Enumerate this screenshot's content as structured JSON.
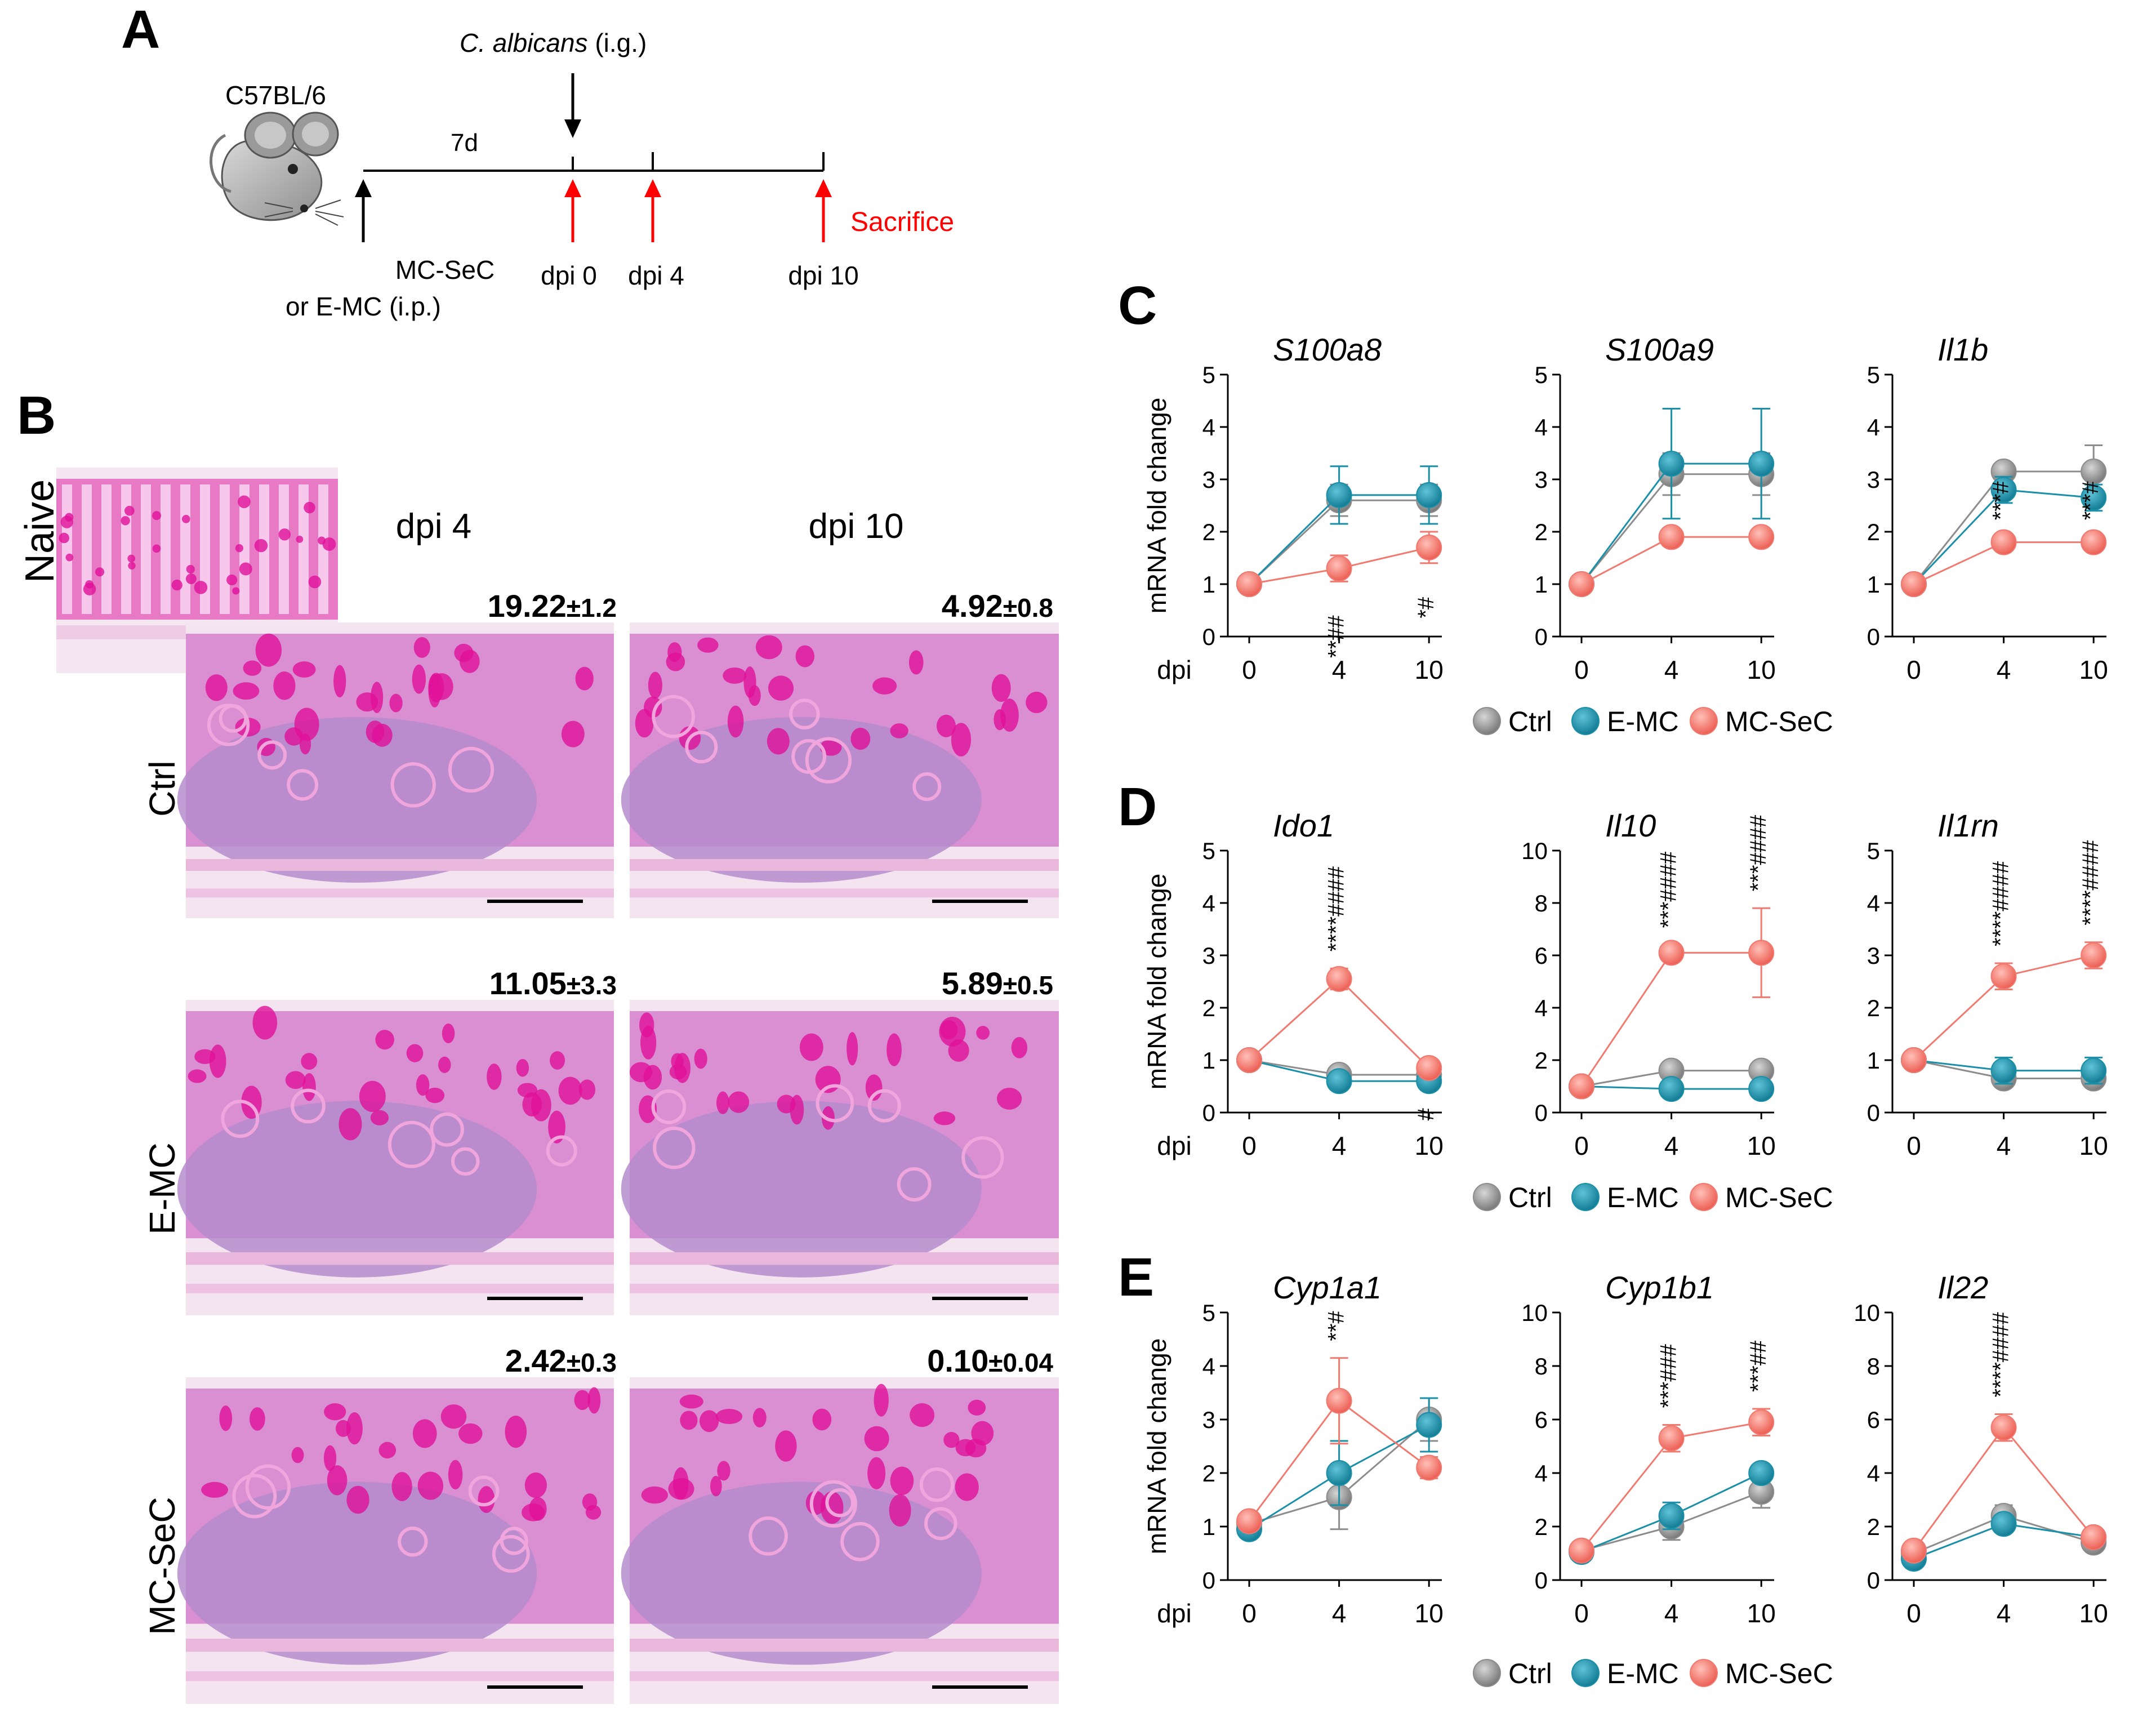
{
  "panel_a": {
    "letter": "A",
    "strain": "C57BL/6",
    "infection_species": "C. albicans",
    "infection_route": "(i.g.)",
    "interval": "7d",
    "treatment": "MC-SeC",
    "treatment_alt": "or E-MC (i.p.)",
    "timepoints": [
      "dpi 0",
      "dpi 4",
      "dpi 10"
    ],
    "end_label": "Sacrifice",
    "colors": {
      "end": "#ff0000",
      "start": "#000000"
    }
  },
  "panel_b": {
    "letter": "B",
    "inset_label": "Naive",
    "columns": [
      "dpi 4",
      "dpi 10"
    ],
    "rows": [
      {
        "group": "Ctrl",
        "scores": [
          {
            "value": "19.22",
            "sd": "±1.2"
          },
          {
            "value": "4.92",
            "sd": "±0.8"
          }
        ]
      },
      {
        "group": "E-MC",
        "scores": [
          {
            "value": "11.05",
            "sd": "±3.3"
          },
          {
            "value": "5.89",
            "sd": "±0.5"
          }
        ]
      },
      {
        "group": "MC-SeC",
        "scores": [
          {
            "value": "2.42",
            "sd": "±0.3"
          },
          {
            "value": "0.10",
            "sd": "±0.04"
          }
        ]
      }
    ],
    "colors": {
      "stain": "#e879c4",
      "tissue": "#d98fd2",
      "lymph": "#b58ccc",
      "goblet": "#e0109a"
    }
  },
  "series_legend": [
    {
      "name": "Ctrl",
      "color": "#8c8c8c"
    },
    {
      "name": "E-MC",
      "color": "#1b8fa8"
    },
    {
      "name": "MC-SeC",
      "color": "#f07a70"
    }
  ],
  "chart_data": [
    {
      "panel": "C",
      "type": "line",
      "title": "S100a8",
      "ylabel": "mRNA fold change",
      "xlabel": "dpi",
      "x": [
        0,
        4,
        10
      ],
      "ylim": [
        0,
        5
      ],
      "series": [
        {
          "name": "Ctrl",
          "values": [
            1,
            2.6,
            2.6
          ],
          "err": [
            0.05,
            0.3,
            0.3
          ]
        },
        {
          "name": "E-MC",
          "values": [
            1,
            2.7,
            2.7
          ],
          "err": [
            0.05,
            0.55,
            0.55
          ]
        },
        {
          "name": "MC-SeC",
          "values": [
            1,
            1.3,
            1.7
          ],
          "err": [
            0.05,
            0.25,
            0.3
          ]
        }
      ],
      "annotations": [
        {
          "x": 4,
          "text": "**##"
        },
        {
          "x": 10,
          "text": "*#"
        }
      ]
    },
    {
      "panel": "C",
      "type": "line",
      "title": "S100a9",
      "ylabel": "mRNA fold change",
      "xlabel": "dpi",
      "x": [
        0,
        4,
        10
      ],
      "ylim": [
        0,
        5
      ],
      "series": [
        {
          "name": "Ctrl",
          "values": [
            1,
            3.1,
            3.1
          ],
          "err": [
            0.05,
            0.4,
            0.4
          ]
        },
        {
          "name": "E-MC",
          "values": [
            1,
            3.3,
            3.3
          ],
          "err": [
            0.05,
            1.05,
            1.05
          ]
        },
        {
          "name": "MC-SeC",
          "values": [
            1,
            1.9,
            1.9
          ],
          "err": [
            0.05,
            0.1,
            0.1
          ]
        }
      ],
      "annotations": []
    },
    {
      "panel": "C",
      "type": "line",
      "title": "Il1b",
      "ylabel": "mRNA fold change",
      "xlabel": "dpi",
      "x": [
        0,
        4,
        10
      ],
      "ylim": [
        0,
        5
      ],
      "series": [
        {
          "name": "Ctrl",
          "values": [
            1,
            3.15,
            3.15
          ],
          "err": [
            0.05,
            0.1,
            0.5
          ]
        },
        {
          "name": "E-MC",
          "values": [
            1,
            2.8,
            2.65
          ],
          "err": [
            0.05,
            0.25,
            0.25
          ]
        },
        {
          "name": "MC-SeC",
          "values": [
            1,
            1.8,
            1.8
          ],
          "err": [
            0.05,
            0.1,
            0.1
          ]
        }
      ],
      "annotations": [
        {
          "x": 4,
          "text": "***#"
        },
        {
          "x": 10,
          "text": "***#"
        }
      ]
    },
    {
      "panel": "D",
      "type": "line",
      "title": "Ido1",
      "ylabel": "mRNA fold change",
      "xlabel": "dpi",
      "x": [
        0,
        4,
        10
      ],
      "ylim": [
        0,
        5
      ],
      "series": [
        {
          "name": "Ctrl",
          "values": [
            1,
            0.72,
            0.72
          ],
          "err": [
            0.05,
            0.08,
            0.08
          ]
        },
        {
          "name": "E-MC",
          "values": [
            1,
            0.6,
            0.6
          ],
          "err": [
            0.05,
            0.05,
            0.05
          ]
        },
        {
          "name": "MC-SeC",
          "values": [
            1,
            2.55,
            0.85
          ],
          "err": [
            0.05,
            0.2,
            0.12
          ]
        }
      ],
      "annotations": [
        {
          "x": 4,
          "text": "****####"
        },
        {
          "x": 10,
          "text": "#"
        }
      ]
    },
    {
      "panel": "D",
      "type": "line",
      "title": "Il10",
      "ylabel": "mRNA fold change",
      "xlabel": "dpi",
      "x": [
        0,
        4,
        10
      ],
      "ylim": [
        0,
        10
      ],
      "series": [
        {
          "name": "Ctrl",
          "values": [
            1,
            1.6,
            1.6
          ],
          "err": [
            0.05,
            0.1,
            0.1
          ]
        },
        {
          "name": "E-MC",
          "values": [
            1,
            0.9,
            0.9
          ],
          "err": [
            0.05,
            0.1,
            0.1
          ]
        },
        {
          "name": "MC-SeC",
          "values": [
            1,
            6.1,
            6.1
          ],
          "err": [
            0.05,
            0.3,
            1.7
          ]
        }
      ],
      "annotations": [
        {
          "x": 4,
          "text": "***####"
        },
        {
          "x": 10,
          "text": "***####"
        }
      ]
    },
    {
      "panel": "D",
      "type": "line",
      "title": "Il1rn",
      "ylabel": "mRNA fold change",
      "xlabel": "dpi",
      "x": [
        0,
        4,
        10
      ],
      "ylim": [
        0,
        5
      ],
      "series": [
        {
          "name": "Ctrl",
          "values": [
            1,
            0.65,
            0.65
          ],
          "err": [
            0.05,
            0.1,
            0.1
          ]
        },
        {
          "name": "E-MC",
          "values": [
            1,
            0.8,
            0.8
          ],
          "err": [
            0.05,
            0.25,
            0.25
          ]
        },
        {
          "name": "MC-SeC",
          "values": [
            1,
            2.6,
            3.0
          ],
          "err": [
            0.05,
            0.25,
            0.25
          ]
        }
      ],
      "annotations": [
        {
          "x": 4,
          "text": "****####"
        },
        {
          "x": 10,
          "text": "****####"
        }
      ]
    },
    {
      "panel": "E",
      "type": "line",
      "title": "Cyp1a1",
      "ylabel": "mRNA fold change",
      "xlabel": "dpi",
      "x": [
        0,
        4,
        10
      ],
      "ylim": [
        0,
        5
      ],
      "series": [
        {
          "name": "Ctrl",
          "values": [
            1.05,
            1.55,
            3.0
          ],
          "err": [
            0.1,
            0.6,
            0.4
          ]
        },
        {
          "name": "E-MC",
          "values": [
            0.95,
            2.0,
            2.9
          ],
          "err": [
            0.1,
            0.6,
            0.5
          ]
        },
        {
          "name": "MC-SeC",
          "values": [
            1.1,
            3.35,
            2.1
          ],
          "err": [
            0.1,
            0.8,
            0.2
          ]
        }
      ],
      "annotations": [
        {
          "x": 4,
          "text": "**#"
        }
      ]
    },
    {
      "panel": "E",
      "type": "line",
      "title": "Cyp1b1",
      "ylabel": "mRNA fold change",
      "xlabel": "dpi",
      "x": [
        0,
        4,
        10
      ],
      "ylim": [
        0,
        10
      ],
      "series": [
        {
          "name": "Ctrl",
          "values": [
            1.1,
            2.0,
            3.3
          ],
          "err": [
            0.1,
            0.5,
            0.6
          ]
        },
        {
          "name": "E-MC",
          "values": [
            1.05,
            2.4,
            4.0
          ],
          "err": [
            0.1,
            0.5,
            0.3
          ]
        },
        {
          "name": "MC-SeC",
          "values": [
            1.1,
            5.3,
            5.9
          ],
          "err": [
            0.1,
            0.5,
            0.5
          ]
        }
      ],
      "annotations": [
        {
          "x": 4,
          "text": "***###"
        },
        {
          "x": 10,
          "text": "***##"
        }
      ]
    },
    {
      "panel": "E",
      "type": "line",
      "title": "Il22",
      "ylabel": "mRNA fold change",
      "xlabel": "dpi",
      "x": [
        0,
        4,
        10
      ],
      "ylim": [
        0,
        10
      ],
      "series": [
        {
          "name": "Ctrl",
          "values": [
            1.0,
            2.4,
            1.4
          ],
          "err": [
            0.2,
            0.4,
            0.2
          ]
        },
        {
          "name": "E-MC",
          "values": [
            0.8,
            2.1,
            1.6
          ],
          "err": [
            0.2,
            0.2,
            0.2
          ]
        },
        {
          "name": "MC-SeC",
          "values": [
            1.1,
            5.7,
            1.6
          ],
          "err": [
            0.2,
            0.5,
            0.2
          ]
        }
      ],
      "annotations": [
        {
          "x": 4,
          "text": "****####"
        }
      ]
    }
  ]
}
